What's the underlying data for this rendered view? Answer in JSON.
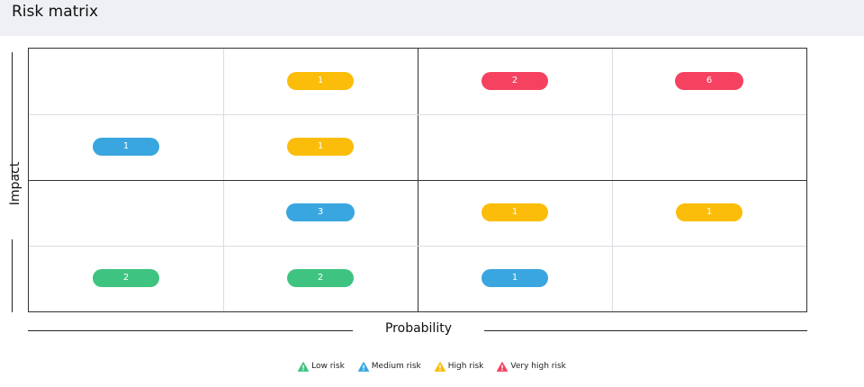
{
  "header": {
    "title": "Risk matrix"
  },
  "chart_data": {
    "type": "table",
    "title": "Risk matrix",
    "xlabel": "Probability",
    "ylabel": "Impact",
    "columns": 4,
    "rows": 4,
    "cells": [
      {
        "row": 1,
        "col": 2,
        "count": "1",
        "risk": "high"
      },
      {
        "row": 1,
        "col": 3,
        "count": "2",
        "risk": "very_high"
      },
      {
        "row": 1,
        "col": 4,
        "count": "6",
        "risk": "very_high"
      },
      {
        "row": 2,
        "col": 1,
        "count": "1",
        "risk": "medium"
      },
      {
        "row": 2,
        "col": 2,
        "count": "1",
        "risk": "high"
      },
      {
        "row": 3,
        "col": 2,
        "count": "3",
        "risk": "medium"
      },
      {
        "row": 3,
        "col": 3,
        "count": "1",
        "risk": "high"
      },
      {
        "row": 3,
        "col": 4,
        "count": "1",
        "risk": "high"
      },
      {
        "row": 4,
        "col": 1,
        "count": "2",
        "risk": "low"
      },
      {
        "row": 4,
        "col": 2,
        "count": "2",
        "risk": "low"
      },
      {
        "row": 4,
        "col": 3,
        "count": "1",
        "risk": "medium"
      }
    ],
    "legend": [
      {
        "key": "low",
        "label": "Low risk",
        "color": "#3fc380",
        "icon": "warning-triangle-icon"
      },
      {
        "key": "medium",
        "label": "Medium risk",
        "color": "#3aa6e0",
        "icon": "warning-triangle-icon"
      },
      {
        "key": "high",
        "label": "High risk",
        "color": "#fbbd0a",
        "icon": "warning-triangle-icon"
      },
      {
        "key": "very_high",
        "label": "Very high risk",
        "color": "#f54260",
        "icon": "warning-triangle-icon"
      }
    ],
    "legend_position": "bottom-center",
    "colors": {
      "major_line": "#333333",
      "minor_line": "#d8dce3"
    }
  }
}
